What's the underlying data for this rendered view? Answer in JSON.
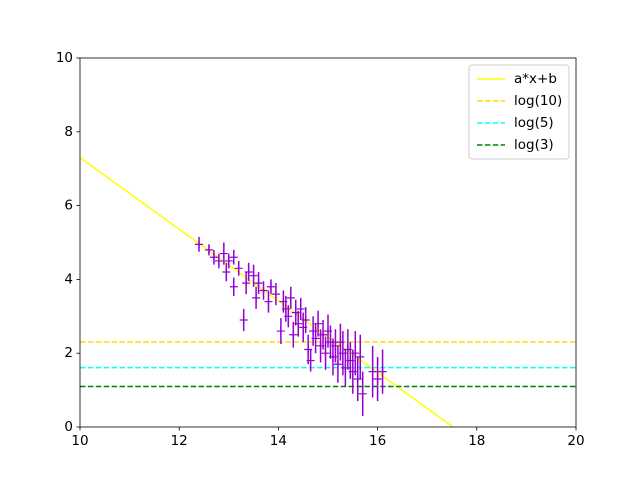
{
  "chart_data": {
    "type": "line",
    "xlim": [
      10,
      20
    ],
    "ylim": [
      0,
      10
    ],
    "xticks": [
      10,
      12,
      14,
      16,
      18,
      20
    ],
    "yticks": [
      0,
      2,
      4,
      6,
      8,
      10
    ],
    "legend": "upper right",
    "series": [
      {
        "name": "a*x+b",
        "color": "#ffff00",
        "linestyle": "solid",
        "x": [
          10,
          17.52
        ],
        "values": [
          7.3,
          0
        ]
      },
      {
        "name": "log(10)",
        "color": "#ffd700",
        "linestyle": "dashed",
        "x": [
          10,
          20
        ],
        "values": [
          2.3026,
          2.3026
        ]
      },
      {
        "name": "log(5)",
        "color": "#00ffff",
        "linestyle": "dashed",
        "x": [
          10,
          20
        ],
        "values": [
          1.6094,
          1.6094
        ]
      },
      {
        "name": "log(3)",
        "color": "#008000",
        "linestyle": "dashed",
        "x": [
          10,
          20
        ],
        "values": [
          1.0986,
          1.0986
        ]
      }
    ],
    "errorbars": {
      "color": "#9400d3",
      "marker": "+",
      "x": [
        12.4,
        12.6,
        12.7,
        12.8,
        12.9,
        12.95,
        13.0,
        13.1,
        13.1,
        13.2,
        13.3,
        13.35,
        13.4,
        13.5,
        13.55,
        13.6,
        13.7,
        13.8,
        13.85,
        13.95,
        14.05,
        14.1,
        14.15,
        14.2,
        14.25,
        14.3,
        14.35,
        14.4,
        14.45,
        14.5,
        14.55,
        14.6,
        14.65,
        14.7,
        14.75,
        14.8,
        14.85,
        14.9,
        14.95,
        15.0,
        15.05,
        15.1,
        15.15,
        15.2,
        15.25,
        15.3,
        15.35,
        15.4,
        15.45,
        15.5,
        15.55,
        15.6,
        15.65,
        15.7,
        15.9,
        16.0,
        16.1
      ],
      "values": [
        4.95,
        4.8,
        4.6,
        4.5,
        4.7,
        4.2,
        4.5,
        3.8,
        4.6,
        4.3,
        2.9,
        3.9,
        4.2,
        4.1,
        3.5,
        3.9,
        3.7,
        3.4,
        3.8,
        3.6,
        2.6,
        3.4,
        3.2,
        3.0,
        3.5,
        2.5,
        3.1,
        2.8,
        3.2,
        2.7,
        2.9,
        2.1,
        1.8,
        2.6,
        2.4,
        2.8,
        2.2,
        2.5,
        2.0,
        2.6,
        2.3,
        1.9,
        2.2,
        1.7,
        2.3,
        2.0,
        1.6,
        2.1,
        1.8,
        1.5,
        2.0,
        1.3,
        1.9,
        0.9,
        1.5,
        1.3,
        1.5
      ],
      "errors": [
        0.2,
        0.15,
        0.2,
        0.2,
        0.3,
        0.25,
        0.2,
        0.25,
        0.2,
        0.2,
        0.3,
        0.3,
        0.25,
        0.3,
        0.3,
        0.3,
        0.25,
        0.3,
        0.2,
        0.3,
        0.35,
        0.3,
        0.35,
        0.3,
        0.3,
        0.35,
        0.35,
        0.35,
        0.3,
        0.4,
        0.35,
        0.4,
        0.3,
        0.4,
        0.4,
        0.35,
        0.45,
        0.4,
        0.45,
        0.45,
        0.45,
        0.5,
        0.45,
        0.5,
        0.5,
        0.6,
        0.5,
        0.55,
        0.5,
        0.6,
        0.6,
        0.6,
        0.6,
        0.6,
        0.7,
        0.6,
        0.6
      ]
    }
  }
}
